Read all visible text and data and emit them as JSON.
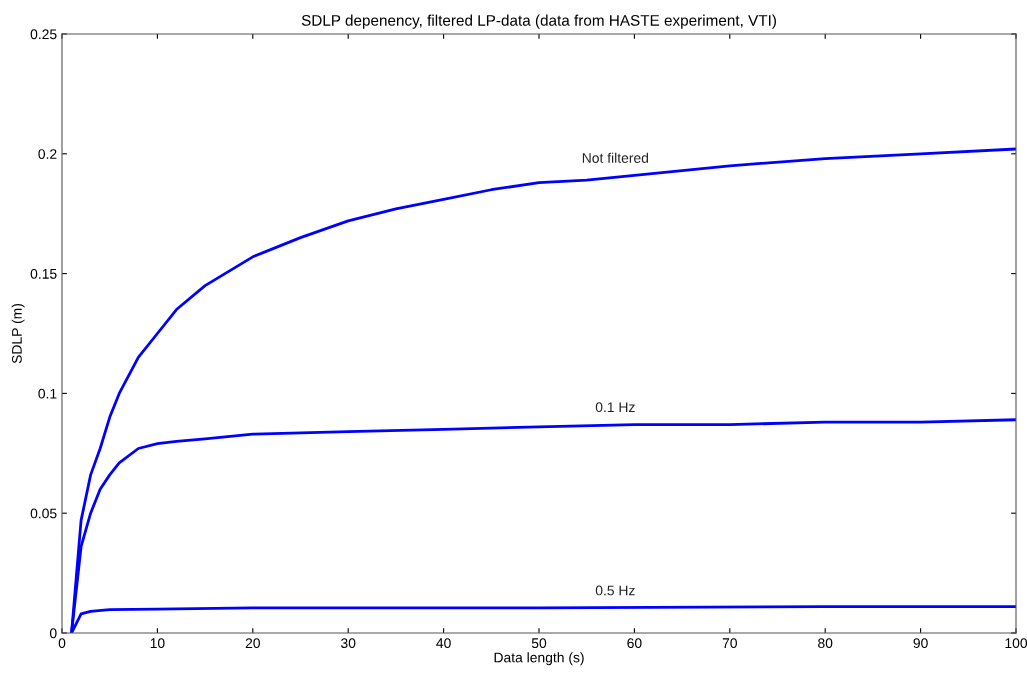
{
  "chart_data": {
    "type": "line",
    "title": "SDLP depenency, filtered LP-data (data from HASTE experiment, VTI)",
    "xlabel": "Data length (s)",
    "ylabel": "SDLP (m)",
    "xlim": [
      0,
      100
    ],
    "ylim": [
      0,
      0.25
    ],
    "xticks": [
      0,
      10,
      20,
      30,
      40,
      50,
      60,
      70,
      80,
      90,
      100
    ],
    "yticks": [
      0,
      0.05,
      0.1,
      0.15,
      0.2,
      0.25
    ],
    "grid": false,
    "legend": false,
    "marker": "none",
    "line_style": "solid",
    "series": [
      {
        "name": "Not filtered",
        "color": "#0000ff",
        "x": [
          1,
          2,
          3,
          4,
          5,
          6,
          8,
          10,
          12,
          15,
          20,
          25,
          30,
          35,
          40,
          45,
          50,
          55,
          60,
          70,
          80,
          90,
          100
        ],
        "values": [
          0,
          0.047,
          0.066,
          0.077,
          0.09,
          0.1,
          0.115,
          0.125,
          0.135,
          0.145,
          0.157,
          0.165,
          0.172,
          0.177,
          0.181,
          0.185,
          0.188,
          0.189,
          0.191,
          0.195,
          0.198,
          0.2,
          0.202
        ]
      },
      {
        "name": "0.1 Hz",
        "color": "#0000ff",
        "x": [
          1,
          2,
          3,
          4,
          5,
          6,
          8,
          10,
          12,
          15,
          20,
          30,
          40,
          50,
          60,
          70,
          80,
          90,
          100
        ],
        "values": [
          0,
          0.036,
          0.05,
          0.06,
          0.066,
          0.071,
          0.077,
          0.079,
          0.08,
          0.081,
          0.083,
          0.084,
          0.085,
          0.086,
          0.087,
          0.087,
          0.088,
          0.088,
          0.089
        ]
      },
      {
        "name": "0.5 Hz",
        "color": "#0000ff",
        "x": [
          1,
          2,
          3,
          5,
          10,
          20,
          50,
          80,
          100
        ],
        "values": [
          0,
          0.008,
          0.009,
          0.0098,
          0.01,
          0.0105,
          0.0105,
          0.011,
          0.011
        ]
      }
    ]
  }
}
